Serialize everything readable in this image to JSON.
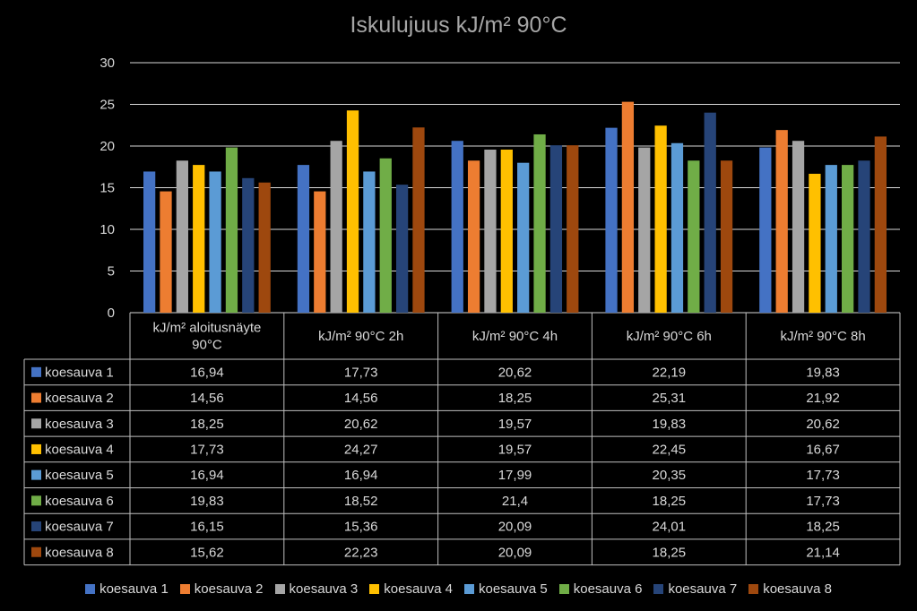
{
  "chart_data": {
    "type": "bar",
    "title": "Iskulujuus kJ/m² 90°C",
    "categories": [
      "kJ/m² aloitusnäyte 90°C",
      "kJ/m² 90°C 2h",
      "kJ/m² 90°C 4h",
      "kJ/m² 90°C 6h",
      "kJ/m² 90°C 8h"
    ],
    "ylim": [
      0,
      30
    ],
    "yticks": [
      "0",
      "5",
      "10",
      "15",
      "20",
      "25",
      "30"
    ],
    "grid": true,
    "legend": "bottom",
    "data_table": true,
    "series": [
      {
        "name": "koesauva 1",
        "color": "#4472c4",
        "values": [
          16.94,
          17.73,
          20.62,
          22.19,
          19.83
        ],
        "labels": [
          "16,94",
          "17,73",
          "20,62",
          "22,19",
          "19,83"
        ]
      },
      {
        "name": "koesauva 2",
        "color": "#ed7d31",
        "values": [
          14.56,
          14.56,
          18.25,
          25.31,
          21.92
        ],
        "labels": [
          "14,56",
          "14,56",
          "18,25",
          "25,31",
          "21,92"
        ]
      },
      {
        "name": "koesauva 3",
        "color": "#a5a5a5",
        "values": [
          18.25,
          20.62,
          19.57,
          19.83,
          20.62
        ],
        "labels": [
          "18,25",
          "20,62",
          "19,57",
          "19,83",
          "20,62"
        ]
      },
      {
        "name": "koesauva 4",
        "color": "#ffc000",
        "values": [
          17.73,
          24.27,
          19.57,
          22.45,
          16.67
        ],
        "labels": [
          "17,73",
          "24,27",
          "19,57",
          "22,45",
          "16,67"
        ]
      },
      {
        "name": "koesauva 5",
        "color": "#5b9bd5",
        "values": [
          16.94,
          16.94,
          17.99,
          20.35,
          17.73
        ],
        "labels": [
          "16,94",
          "16,94",
          "17,99",
          "20,35",
          "17,73"
        ]
      },
      {
        "name": "koesauva 6",
        "color": "#70ad47",
        "values": [
          19.83,
          18.52,
          21.4,
          18.25,
          17.73
        ],
        "labels": [
          "19,83",
          "18,52",
          "21,4",
          "18,25",
          "17,73"
        ]
      },
      {
        "name": "koesauva 7",
        "color": "#264478",
        "values": [
          16.15,
          15.36,
          20.09,
          24.01,
          18.25
        ],
        "labels": [
          "16,15",
          "15,36",
          "20,09",
          "24,01",
          "18,25"
        ]
      },
      {
        "name": "koesauva 8",
        "color": "#9e480e",
        "values": [
          15.62,
          22.23,
          20.09,
          18.25,
          21.14
        ],
        "labels": [
          "15,62",
          "22,23",
          "20,09",
          "18,25",
          "21,14"
        ]
      }
    ]
  }
}
